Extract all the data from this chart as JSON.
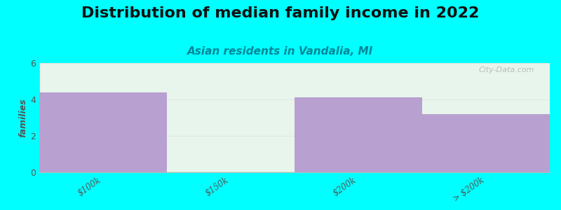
{
  "title": "Distribution of median family income in 2022",
  "subtitle": "Asian residents in Vandalia, MI",
  "categories": [
    "$100k",
    "$150k",
    "$200k",
    "> $200k"
  ],
  "values": [
    4.4,
    0.05,
    4.1,
    3.2
  ],
  "bar_colors": [
    "#b8a0d0",
    "#d8efd0",
    "#b8a0d0",
    "#b8a0d0"
  ],
  "ylim": [
    0,
    6
  ],
  "yticks": [
    0,
    2,
    4,
    6
  ],
  "ylabel": "families",
  "background_color": "#00ffff",
  "plot_bg_color": "#e8f5ec",
  "title_fontsize": 16,
  "subtitle_fontsize": 11,
  "watermark": "City-Data.com"
}
